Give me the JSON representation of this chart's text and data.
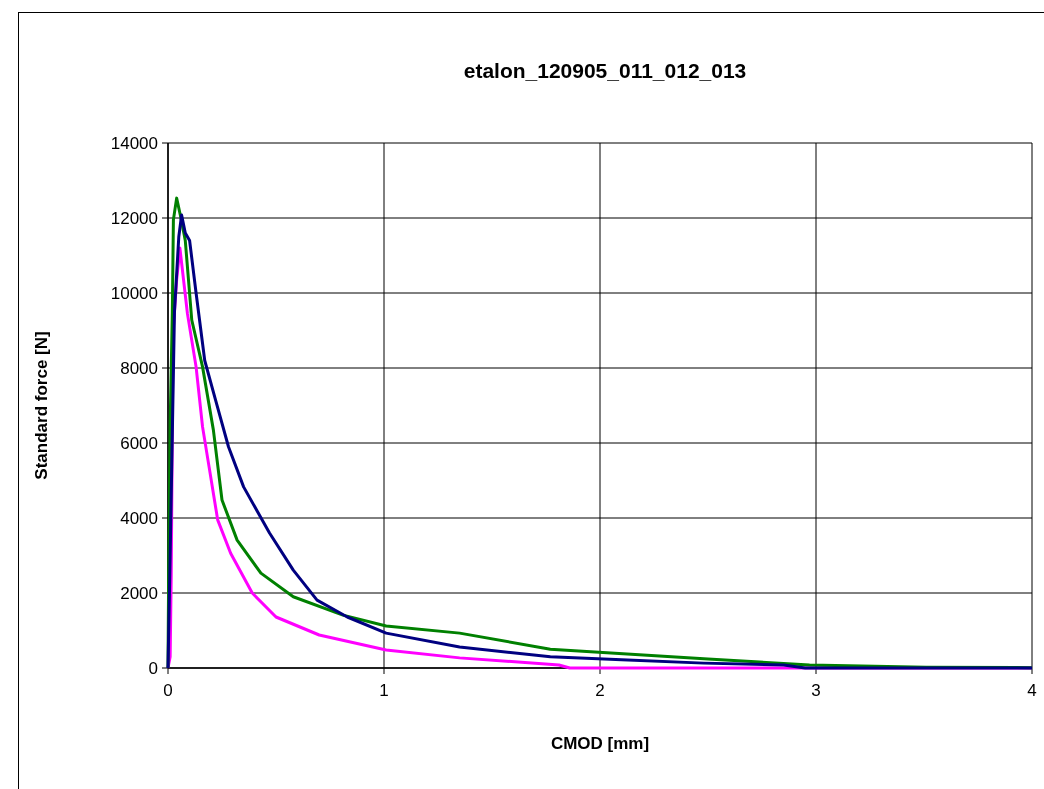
{
  "chart_data": {
    "type": "line",
    "title": "etalon_120905_011_012_013",
    "xlabel": "CMOD [mm]",
    "ylabel": "Standard force [N]",
    "xlim": [
      0,
      4
    ],
    "xticks": [
      0,
      1,
      2,
      3,
      4
    ],
    "ylim": [
      0,
      14000
    ],
    "yticks": [
      0,
      2000,
      4000,
      6000,
      8000,
      10000,
      12000,
      14000
    ],
    "grid": true,
    "line_style": "solid",
    "marker": "none",
    "series": [
      {
        "color": "#000080",
        "x": [
          0,
          0.01,
          0.03,
          0.05,
          0.063,
          0.08,
          0.1,
          0.13,
          0.17,
          0.22,
          0.28,
          0.35,
          0.47,
          0.58,
          0.69,
          0.83,
          1.01,
          1.35,
          1.77,
          2.1,
          2.48,
          2.85,
          2.95,
          4
        ],
        "values": [
          0,
          3000,
          9500,
          11500,
          12080,
          11600,
          11400,
          10000,
          8200,
          7150,
          5900,
          4830,
          3600,
          2610,
          1810,
          1360,
          930,
          560,
          300,
          220,
          130,
          80,
          0,
          0
        ]
      },
      {
        "color": "#008000",
        "x": [
          0,
          0.003,
          0.01,
          0.02,
          0.025,
          0.04,
          0.06,
          0.08,
          0.11,
          0.16,
          0.21,
          0.25,
          0.32,
          0.43,
          0.58,
          0.81,
          1.01,
          1.35,
          1.77,
          2.5,
          2.97,
          3.51,
          4
        ],
        "values": [
          0,
          2500,
          6500,
          9450,
          11950,
          12530,
          12000,
          11400,
          9280,
          8030,
          6350,
          4480,
          3410,
          2530,
          1900,
          1410,
          1120,
          930,
          500,
          240,
          80,
          20,
          10
        ]
      },
      {
        "color": "#ff00ff",
        "x": [
          0,
          0.01,
          0.015,
          0.023,
          0.04,
          0.055,
          0.09,
          0.13,
          0.16,
          0.19,
          0.23,
          0.29,
          0.39,
          0.5,
          0.7,
          1.01,
          1.35,
          1.81,
          1.86,
          4
        ],
        "values": [
          0,
          300,
          2500,
          8930,
          10350,
          11200,
          9450,
          8030,
          6430,
          5370,
          3950,
          3060,
          2000,
          1360,
          880,
          480,
          270,
          80,
          0,
          0
        ]
      }
    ]
  }
}
